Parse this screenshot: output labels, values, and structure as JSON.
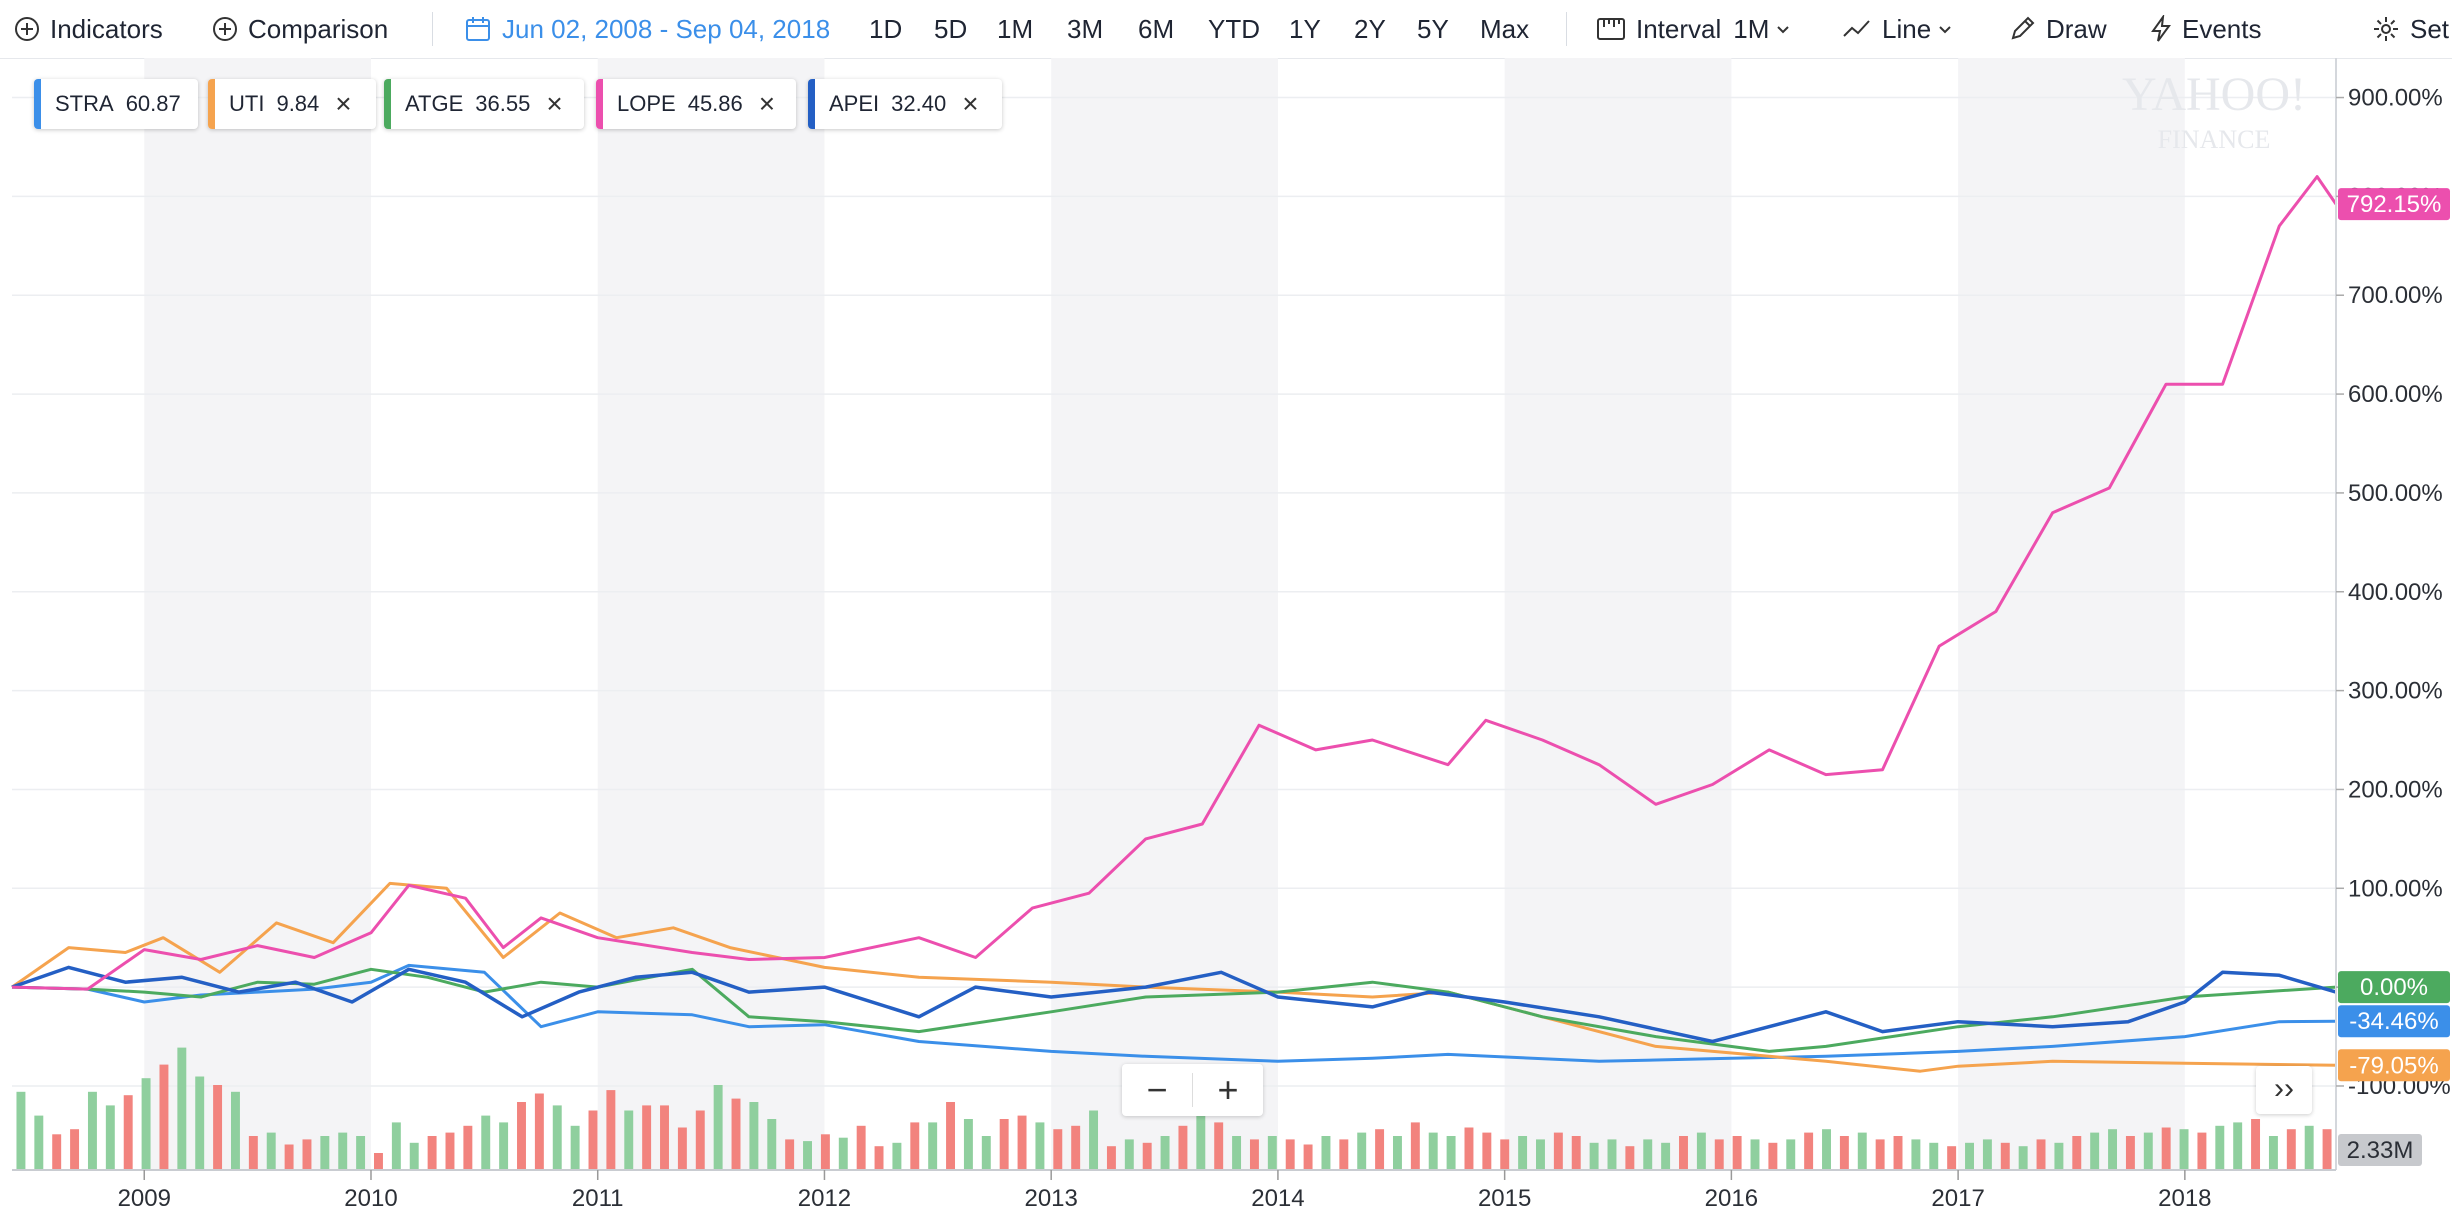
{
  "toolbar": {
    "indicators": "Indicators",
    "comparison": "Comparison",
    "range": "Jun 02, 2008 - Sep 04, 2018",
    "periods": [
      "1D",
      "5D",
      "1M",
      "3M",
      "6M",
      "YTD",
      "1Y",
      "2Y",
      "5Y",
      "Max"
    ],
    "interval_label": "Interval",
    "interval_value": "1M",
    "line": "Line",
    "draw": "Draw",
    "events": "Events",
    "settings": "Set"
  },
  "legend_chips": [
    {
      "symbol": "STRA",
      "value": "60.87",
      "color": "#3b8fe9",
      "removable": false
    },
    {
      "symbol": "UTI",
      "value": "9.84",
      "color": "#f5a34e",
      "removable": true
    },
    {
      "symbol": "ATGE",
      "value": "36.55",
      "color": "#4caa5f",
      "removable": true
    },
    {
      "symbol": "LOPE",
      "value": "45.86",
      "color": "#ec4fae",
      "removable": true
    },
    {
      "symbol": "APEI",
      "value": "32.40",
      "color": "#245fc4",
      "removable": true
    }
  ],
  "watermark": {
    "line1": "YAHOO!",
    "line2": "FINANCE"
  },
  "zoom": {
    "minus": "−",
    "plus": "+"
  },
  "expand_label": "››",
  "chart_data": {
    "type": "line",
    "x_tick_labels": [
      "2009",
      "2010",
      "2011",
      "2012",
      "2013",
      "2014",
      "2015",
      "2016",
      "2017",
      "2018"
    ],
    "y_tick_labels": [
      "900.00%",
      "800.00%",
      "700.00%",
      "600.00%",
      "500.00%",
      "400.00%",
      "300.00%",
      "200.00%",
      "100.00%",
      "0.00%",
      "-100.00%"
    ],
    "y_ticks": [
      900,
      800,
      700,
      600,
      500,
      400,
      300,
      200,
      100,
      0,
      -100
    ],
    "ylim": [
      -185,
      940
    ],
    "x_start": "2008-06",
    "x_end": "2018-09",
    "grid": true,
    "shaded_years": [
      "2009",
      "2011",
      "2013",
      "2015",
      "2017"
    ],
    "end_labels": [
      {
        "text": "792.15%",
        "value": 792.15,
        "color": "#ec4fae"
      },
      {
        "text": "0.00%",
        "value": 0,
        "color": "#4caa5f"
      },
      {
        "text": "-34.46%",
        "value": -34.46,
        "color": "#3b8fe9"
      },
      {
        "text": "-79.05%",
        "value": -79.05,
        "color": "#f5a34e"
      }
    ],
    "volume_label": "2.33M",
    "series": [
      {
        "name": "STRA",
        "color": "#3b8fe9",
        "points": [
          [
            "2008-06",
            0
          ],
          [
            "2008-10",
            -2
          ],
          [
            "2009-01",
            -15
          ],
          [
            "2009-04",
            -8
          ],
          [
            "2009-07",
            -5
          ],
          [
            "2009-10",
            -2
          ],
          [
            "2010-01",
            5
          ],
          [
            "2010-03",
            22
          ],
          [
            "2010-07",
            15
          ],
          [
            "2010-10",
            -40
          ],
          [
            "2011-01",
            -25
          ],
          [
            "2011-06",
            -28
          ],
          [
            "2011-09",
            -40
          ],
          [
            "2012-01",
            -38
          ],
          [
            "2012-06",
            -55
          ],
          [
            "2013-01",
            -65
          ],
          [
            "2013-06",
            -70
          ],
          [
            "2014-01",
            -75
          ],
          [
            "2014-06",
            -72
          ],
          [
            "2014-10",
            -68
          ],
          [
            "2015-06",
            -75
          ],
          [
            "2016-01",
            -72
          ],
          [
            "2016-06",
            -70
          ],
          [
            "2017-01",
            -65
          ],
          [
            "2017-06",
            -60
          ],
          [
            "2018-01",
            -50
          ],
          [
            "2018-06",
            -35
          ],
          [
            "2018-09",
            -34.46
          ]
        ]
      },
      {
        "name": "UTI",
        "color": "#f5a34e",
        "points": [
          [
            "2008-06",
            0
          ],
          [
            "2008-09",
            40
          ],
          [
            "2008-12",
            35
          ],
          [
            "2009-02",
            50
          ],
          [
            "2009-05",
            15
          ],
          [
            "2009-08",
            65
          ],
          [
            "2009-11",
            45
          ],
          [
            "2010-02",
            105
          ],
          [
            "2010-05",
            100
          ],
          [
            "2010-08",
            30
          ],
          [
            "2010-11",
            75
          ],
          [
            "2011-02",
            50
          ],
          [
            "2011-05",
            60
          ],
          [
            "2011-08",
            40
          ],
          [
            "2012-01",
            20
          ],
          [
            "2012-06",
            10
          ],
          [
            "2013-01",
            5
          ],
          [
            "2013-06",
            0
          ],
          [
            "2014-01",
            -5
          ],
          [
            "2014-06",
            -10
          ],
          [
            "2014-10",
            -5
          ],
          [
            "2015-03",
            -30
          ],
          [
            "2015-09",
            -60
          ],
          [
            "2016-03",
            -70
          ],
          [
            "2016-06",
            -75
          ],
          [
            "2016-11",
            -85
          ],
          [
            "2017-01",
            -80
          ],
          [
            "2017-06",
            -75
          ],
          [
            "2018-01",
            -77
          ],
          [
            "2018-09",
            -79.05
          ]
        ]
      },
      {
        "name": "ATGE",
        "color": "#4caa5f",
        "points": [
          [
            "2008-06",
            0
          ],
          [
            "2008-10",
            -2
          ],
          [
            "2009-01",
            -5
          ],
          [
            "2009-04",
            -10
          ],
          [
            "2009-07",
            5
          ],
          [
            "2009-10",
            3
          ],
          [
            "2010-01",
            18
          ],
          [
            "2010-04",
            10
          ],
          [
            "2010-07",
            -5
          ],
          [
            "2010-10",
            5
          ],
          [
            "2011-01",
            0
          ],
          [
            "2011-06",
            18
          ],
          [
            "2011-09",
            -30
          ],
          [
            "2012-01",
            -35
          ],
          [
            "2012-06",
            -45
          ],
          [
            "2013-01",
            -25
          ],
          [
            "2013-06",
            -10
          ],
          [
            "2014-01",
            -5
          ],
          [
            "2014-06",
            5
          ],
          [
            "2014-10",
            -5
          ],
          [
            "2015-03",
            -30
          ],
          [
            "2015-09",
            -50
          ],
          [
            "2016-03",
            -65
          ],
          [
            "2016-06",
            -60
          ],
          [
            "2017-01",
            -40
          ],
          [
            "2017-06",
            -30
          ],
          [
            "2018-01",
            -10
          ],
          [
            "2018-09",
            0
          ]
        ]
      },
      {
        "name": "LOPE",
        "color": "#ec4fae",
        "points": [
          [
            "2008-06",
            0
          ],
          [
            "2008-10",
            -2
          ],
          [
            "2009-01",
            38
          ],
          [
            "2009-04",
            28
          ],
          [
            "2009-07",
            42
          ],
          [
            "2009-10",
            30
          ],
          [
            "2010-01",
            55
          ],
          [
            "2010-03",
            103
          ],
          [
            "2010-06",
            90
          ],
          [
            "2010-08",
            40
          ],
          [
            "2010-10",
            70
          ],
          [
            "2011-01",
            50
          ],
          [
            "2011-06",
            35
          ],
          [
            "2011-09",
            28
          ],
          [
            "2012-01",
            30
          ],
          [
            "2012-06",
            50
          ],
          [
            "2012-09",
            30
          ],
          [
            "2012-12",
            80
          ],
          [
            "2013-03",
            95
          ],
          [
            "2013-06",
            150
          ],
          [
            "2013-09",
            165
          ],
          [
            "2013-12",
            265
          ],
          [
            "2014-03",
            240
          ],
          [
            "2014-06",
            250
          ],
          [
            "2014-10",
            225
          ],
          [
            "2014-12",
            270
          ],
          [
            "2015-03",
            250
          ],
          [
            "2015-06",
            225
          ],
          [
            "2015-09",
            185
          ],
          [
            "2015-12",
            205
          ],
          [
            "2016-03",
            240
          ],
          [
            "2016-06",
            215
          ],
          [
            "2016-09",
            220
          ],
          [
            "2016-12",
            345
          ],
          [
            "2017-03",
            380
          ],
          [
            "2017-06",
            480
          ],
          [
            "2017-09",
            505
          ],
          [
            "2017-12",
            610
          ],
          [
            "2018-03",
            610
          ],
          [
            "2018-06",
            770
          ],
          [
            "2018-08",
            820
          ],
          [
            "2018-09",
            792.15
          ]
        ]
      },
      {
        "name": "APEI",
        "color": "#245fc4",
        "points": [
          [
            "2008-06",
            0
          ],
          [
            "2008-09",
            20
          ],
          [
            "2008-12",
            5
          ],
          [
            "2009-03",
            10
          ],
          [
            "2009-06",
            -5
          ],
          [
            "2009-09",
            5
          ],
          [
            "2009-12",
            -15
          ],
          [
            "2010-03",
            18
          ],
          [
            "2010-06",
            5
          ],
          [
            "2010-09",
            -30
          ],
          [
            "2010-12",
            -5
          ],
          [
            "2011-03",
            10
          ],
          [
            "2011-06",
            15
          ],
          [
            "2011-09",
            -5
          ],
          [
            "2012-01",
            0
          ],
          [
            "2012-06",
            -30
          ],
          [
            "2012-09",
            0
          ],
          [
            "2013-01",
            -10
          ],
          [
            "2013-06",
            0
          ],
          [
            "2013-10",
            15
          ],
          [
            "2014-01",
            -10
          ],
          [
            "2014-06",
            -20
          ],
          [
            "2014-09",
            -5
          ],
          [
            "2015-01",
            -15
          ],
          [
            "2015-06",
            -30
          ],
          [
            "2015-12",
            -55
          ],
          [
            "2016-06",
            -25
          ],
          [
            "2016-09",
            -45
          ],
          [
            "2017-01",
            -35
          ],
          [
            "2017-06",
            -40
          ],
          [
            "2017-10",
            -35
          ],
          [
            "2018-01",
            -15
          ],
          [
            "2018-03",
            15
          ],
          [
            "2018-06",
            12
          ],
          [
            "2018-09",
            -5
          ]
        ]
      }
    ],
    "volume_bars": [
      [
        46,
        "g"
      ],
      [
        32,
        "g"
      ],
      [
        21,
        "r"
      ],
      [
        24,
        "r"
      ],
      [
        46,
        "g"
      ],
      [
        38,
        "g"
      ],
      [
        44,
        "r"
      ],
      [
        54,
        "g"
      ],
      [
        62,
        "r"
      ],
      [
        72,
        "g"
      ],
      [
        55,
        "g"
      ],
      [
        50,
        "r"
      ],
      [
        46,
        "g"
      ],
      [
        20,
        "r"
      ],
      [
        22,
        "g"
      ],
      [
        15,
        "r"
      ],
      [
        18,
        "r"
      ],
      [
        20,
        "g"
      ],
      [
        22,
        "g"
      ],
      [
        20,
        "g"
      ],
      [
        10,
        "r"
      ],
      [
        28,
        "g"
      ],
      [
        16,
        "g"
      ],
      [
        20,
        "r"
      ],
      [
        22,
        "r"
      ],
      [
        26,
        "r"
      ],
      [
        32,
        "g"
      ],
      [
        28,
        "g"
      ],
      [
        40,
        "r"
      ],
      [
        45,
        "r"
      ],
      [
        38,
        "g"
      ],
      [
        26,
        "g"
      ],
      [
        35,
        "r"
      ],
      [
        47,
        "r"
      ],
      [
        35,
        "g"
      ],
      [
        38,
        "r"
      ],
      [
        38,
        "r"
      ],
      [
        25,
        "r"
      ],
      [
        35,
        "r"
      ],
      [
        50,
        "g"
      ],
      [
        42,
        "r"
      ],
      [
        40,
        "g"
      ],
      [
        30,
        "g"
      ],
      [
        18,
        "r"
      ],
      [
        17,
        "g"
      ],
      [
        21,
        "r"
      ],
      [
        19,
        "g"
      ],
      [
        26,
        "r"
      ],
      [
        14,
        "r"
      ],
      [
        16,
        "g"
      ],
      [
        28,
        "r"
      ],
      [
        28,
        "g"
      ],
      [
        40,
        "r"
      ],
      [
        30,
        "g"
      ],
      [
        20,
        "g"
      ],
      [
        30,
        "r"
      ],
      [
        32,
        "r"
      ],
      [
        28,
        "g"
      ],
      [
        24,
        "r"
      ],
      [
        26,
        "r"
      ],
      [
        35,
        "g"
      ],
      [
        14,
        "r"
      ],
      [
        18,
        "g"
      ],
      [
        16,
        "r"
      ],
      [
        20,
        "g"
      ],
      [
        26,
        "r"
      ],
      [
        45,
        "g"
      ],
      [
        28,
        "r"
      ],
      [
        20,
        "g"
      ],
      [
        18,
        "r"
      ],
      [
        20,
        "g"
      ],
      [
        18,
        "r"
      ],
      [
        15,
        "r"
      ],
      [
        20,
        "g"
      ],
      [
        18,
        "r"
      ],
      [
        22,
        "g"
      ],
      [
        24,
        "r"
      ],
      [
        20,
        "g"
      ],
      [
        28,
        "r"
      ],
      [
        22,
        "g"
      ],
      [
        20,
        "g"
      ],
      [
        25,
        "r"
      ],
      [
        22,
        "r"
      ],
      [
        18,
        "r"
      ],
      [
        20,
        "g"
      ],
      [
        18,
        "g"
      ],
      [
        22,
        "r"
      ],
      [
        20,
        "r"
      ],
      [
        16,
        "g"
      ],
      [
        18,
        "g"
      ],
      [
        14,
        "r"
      ],
      [
        18,
        "g"
      ],
      [
        16,
        "g"
      ],
      [
        20,
        "r"
      ],
      [
        22,
        "g"
      ],
      [
        18,
        "r"
      ],
      [
        20,
        "r"
      ],
      [
        18,
        "g"
      ],
      [
        16,
        "r"
      ],
      [
        18,
        "g"
      ],
      [
        22,
        "r"
      ],
      [
        24,
        "g"
      ],
      [
        20,
        "r"
      ],
      [
        22,
        "g"
      ],
      [
        18,
        "r"
      ],
      [
        20,
        "r"
      ],
      [
        18,
        "g"
      ],
      [
        16,
        "g"
      ],
      [
        14,
        "r"
      ],
      [
        16,
        "g"
      ],
      [
        18,
        "g"
      ],
      [
        16,
        "r"
      ],
      [
        14,
        "g"
      ],
      [
        18,
        "r"
      ],
      [
        16,
        "g"
      ],
      [
        20,
        "r"
      ],
      [
        22,
        "g"
      ],
      [
        24,
        "g"
      ],
      [
        20,
        "r"
      ],
      [
        22,
        "g"
      ],
      [
        25,
        "r"
      ],
      [
        24,
        "g"
      ],
      [
        22,
        "r"
      ],
      [
        26,
        "g"
      ],
      [
        28,
        "g"
      ],
      [
        30,
        "r"
      ],
      [
        20,
        "g"
      ],
      [
        24,
        "r"
      ],
      [
        26,
        "g"
      ],
      [
        24,
        "r"
      ]
    ]
  }
}
